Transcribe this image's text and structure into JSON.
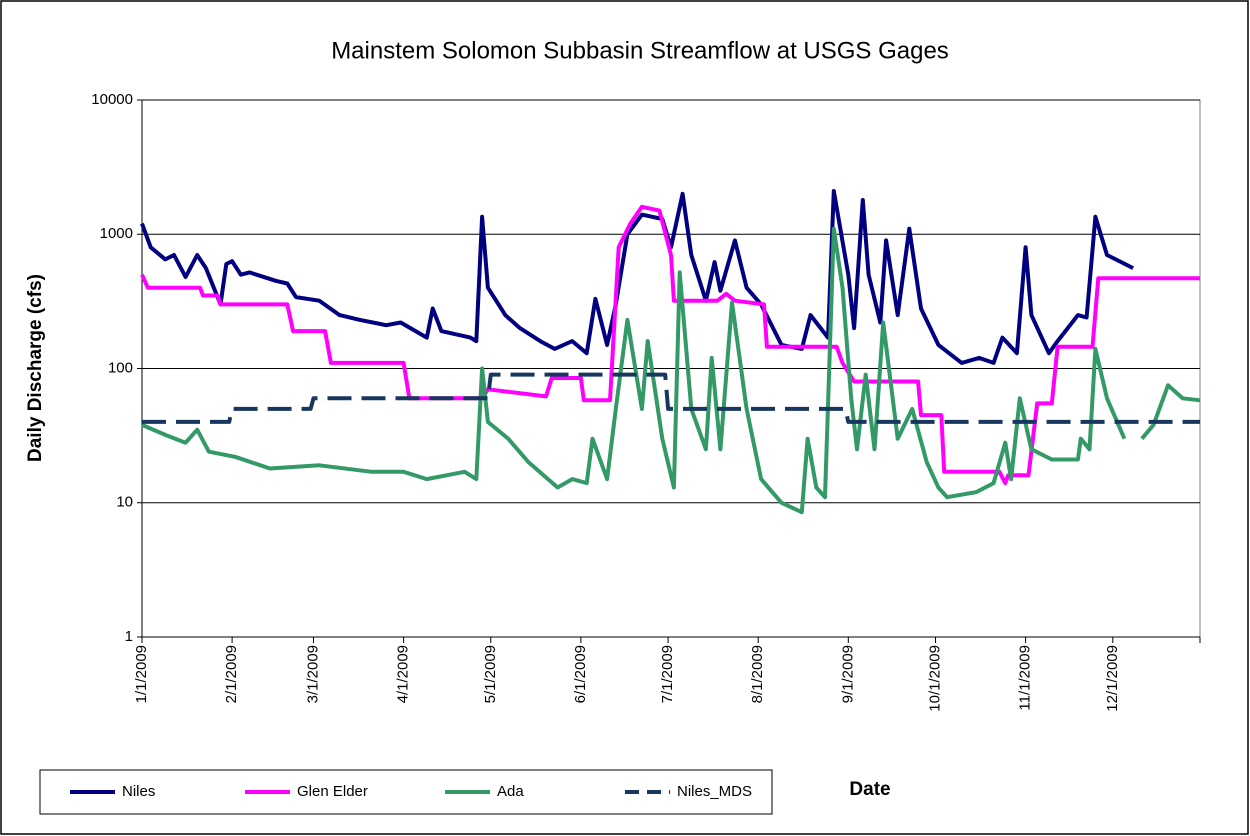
{
  "chart_data": {
    "type": "line",
    "title": "Mainstem Solomon Subbasin Streamflow at USGS Gages",
    "xlabel": "Date",
    "ylabel": "Daily Discharge (cfs)",
    "log_y": true,
    "grid": true,
    "legend": "bottom-left",
    "xlim": [
      "1/1/2009",
      "12/31/2009"
    ],
    "xticks": [
      "1/1/2009",
      "2/1/2009",
      "3/1/2009",
      "4/1/2009",
      "5/1/2009",
      "6/1/2009",
      "7/1/2009",
      "8/1/2009",
      "9/1/2009",
      "10/1/2009",
      "11/1/2009",
      "12/1/2009"
    ],
    "ylim": [
      1,
      10000
    ],
    "yticks": [
      1,
      10,
      100,
      1000,
      10000
    ],
    "series": [
      {
        "name": "Niles",
        "color": "#000080",
        "dashed": false,
        "x": [
          "1/1/2009",
          "1/4/2009",
          "1/9/2009",
          "1/12/2009",
          "1/16/2009",
          "1/20/2009",
          "1/23/2009",
          "1/28/2009",
          "1/30/2009",
          "2/1/2009",
          "2/4/2009",
          "2/7/2009",
          "2/16/2009",
          "2/20/2009",
          "2/23/2009",
          "3/3/2009",
          "3/10/2009",
          "3/17/2009",
          "3/26/2009",
          "3/31/2009",
          "4/9/2009",
          "4/11/2009",
          "4/14/2009",
          "4/24/2009",
          "4/26/2009",
          "4/28/2009",
          "4/30/2009",
          "5/6/2009",
          "5/11/2009",
          "5/18/2009",
          "5/23/2009",
          "5/29/2009",
          "6/3/2009",
          "6/6/2009",
          "6/10/2009",
          "6/13/2009",
          "6/17/2009",
          "6/22/2009",
          "6/29/2009",
          "7/2/2009",
          "7/6/2009",
          "7/9/2009",
          "7/14/2009",
          "7/17/2009",
          "7/19/2009",
          "7/24/2009",
          "7/28/2009",
          "8/2/2009",
          "8/9/2009",
          "8/16/2009",
          "8/19/2009",
          "8/25/2009",
          "8/27/2009",
          "9/1/2009",
          "9/3/2009",
          "9/6/2009",
          "9/8/2009",
          "9/12/2009",
          "9/14/2009",
          "9/18/2009",
          "9/22/2009",
          "9/26/2009",
          "10/2/2009",
          "10/10/2009",
          "10/16/2009",
          "10/21/2009",
          "10/24/2009",
          "10/29/2009",
          "11/1/2009",
          "11/3/2009",
          "11/9/2009",
          "11/12/2009",
          "11/19/2009",
          "11/22/2009",
          "11/25/2009",
          "11/29/2009",
          "12/8/2009"
        ],
        "values": [
          1200,
          800,
          650,
          700,
          480,
          700,
          560,
          300,
          600,
          630,
          500,
          520,
          450,
          430,
          340,
          320,
          250,
          230,
          210,
          220,
          170,
          280,
          190,
          170,
          160,
          1350,
          400,
          250,
          200,
          160,
          140,
          160,
          130,
          330,
          150,
          300,
          1000,
          1400,
          1300,
          800,
          2000,
          700,
          320,
          620,
          380,
          900,
          400,
          300,
          150,
          140,
          250,
          170,
          2100,
          500,
          200,
          1800,
          500,
          220,
          900,
          250,
          1100,
          280,
          150,
          110,
          120,
          110,
          170,
          130,
          800,
          250,
          130,
          160,
          250,
          240,
          1350,
          700,
          560
        ]
      },
      {
        "name": "Glen Elder",
        "color": "#ff00ff",
        "dashed": false,
        "x": [
          "1/1/2009",
          "1/3/2009",
          "1/21/2009",
          "1/22/2009",
          "1/27/2009",
          "1/28/2009",
          "2/20/2009",
          "2/22/2009",
          "3/5/2009",
          "3/7/2009",
          "4/1/2009",
          "4/3/2009",
          "4/28/2009",
          "4/30/2009",
          "5/20/2009",
          "5/22/2009",
          "6/1/2009",
          "6/2/2009",
          "6/11/2009",
          "6/14/2009",
          "6/18/2009",
          "6/22/2009",
          "6/28/2009",
          "7/2/2009",
          "7/3/2009",
          "7/18/2009",
          "7/21/2009",
          "7/24/2009",
          "8/3/2009",
          "8/4/2009",
          "8/28/2009",
          "8/30/2009",
          "9/3/2009",
          "9/25/2009",
          "9/26/2009",
          "10/3/2009",
          "10/4/2009",
          "10/23/2009",
          "10/25/2009",
          "10/26/2009",
          "11/2/2009",
          "11/5/2009",
          "11/10/2009",
          "11/12/2009",
          "11/24/2009",
          "11/26/2009",
          "12/31/2009"
        ],
        "values": [
          500,
          400,
          400,
          350,
          350,
          300,
          300,
          190,
          190,
          110,
          110,
          60,
          60,
          70,
          62,
          85,
          85,
          58,
          58,
          800,
          1200,
          1600,
          1500,
          700,
          320,
          320,
          360,
          320,
          300,
          145,
          145,
          110,
          80,
          80,
          45,
          45,
          17,
          17,
          14,
          16,
          16,
          55,
          55,
          145,
          145,
          470,
          470
        ]
      },
      {
        "name": "Ada",
        "color": "#339966",
        "dashed": false,
        "x": [
          "1/1/2009",
          "1/9/2009",
          "1/16/2009",
          "1/20/2009",
          "1/24/2009",
          "2/2/2009",
          "2/14/2009",
          "3/3/2009",
          "3/21/2009",
          "4/1/2009",
          "4/9/2009",
          "4/22/2009",
          "4/26/2009",
          "4/28/2009",
          "4/30/2009",
          "5/7/2009",
          "5/14/2009",
          "5/24/2009",
          "5/29/2009",
          "6/3/2009",
          "6/5/2009",
          "6/10/2009",
          "6/13/2009",
          "6/17/2009",
          "6/22/2009",
          "6/24/2009",
          "6/29/2009",
          "7/3/2009",
          "7/5/2009",
          "7/9/2009",
          "7/14/2009",
          "7/16/2009",
          "7/19/2009",
          "7/23/2009",
          "7/28/2009",
          "8/2/2009",
          "8/9/2009",
          "8/16/2009",
          "8/18/2009",
          "8/21/2009",
          "8/24/2009",
          "8/27/2009",
          "8/30/2009",
          "9/2/2009",
          "9/4/2009",
          "9/7/2009",
          "9/10/2009",
          "9/13/2009",
          "9/18/2009",
          "9/23/2009",
          "9/28/2009",
          "10/2/2009",
          "10/5/2009",
          "10/15/2009",
          "10/21/2009",
          "10/25/2009",
          "10/27/2009",
          "10/30/2009",
          "11/3/2009",
          "11/10/2009",
          "11/19/2009",
          "11/20/2009",
          "11/23/2009",
          "11/25/2009",
          "11/29/2009",
          "12/5/2009",
          "12/8/2009",
          "12/11/2009",
          "12/15/2009",
          "12/20/2009",
          "12/25/2009",
          "12/31/2009"
        ],
        "values": [
          38,
          32,
          28,
          35,
          24,
          22,
          18,
          19,
          17,
          17,
          15,
          17,
          15,
          100,
          40,
          30,
          20,
          13,
          15,
          14,
          30,
          15,
          50,
          230,
          50,
          160,
          30,
          13,
          520,
          50,
          25,
          120,
          25,
          310,
          50,
          15,
          10,
          8.5,
          30,
          13,
          11,
          1100,
          400,
          60,
          25,
          90,
          25,
          220,
          30,
          50,
          20,
          13,
          11,
          12,
          14,
          28,
          15,
          60,
          25,
          21,
          21,
          30,
          25,
          140,
          60,
          30,
          null,
          30,
          38,
          75,
          60,
          58
        ]
      },
      {
        "name": "Niles_MDS",
        "color": "#17375e",
        "dashed": true,
        "x": [
          "1/1/2009",
          "1/31/2009",
          "2/1/2009",
          "2/28/2009",
          "3/1/2009",
          "4/30/2009",
          "5/1/2009",
          "6/30/2009",
          "7/1/2009",
          "8/31/2009",
          "9/1/2009",
          "12/31/2009"
        ],
        "values": [
          40,
          40,
          50,
          50,
          60,
          60,
          90,
          90,
          50,
          50,
          40,
          40
        ]
      }
    ]
  }
}
